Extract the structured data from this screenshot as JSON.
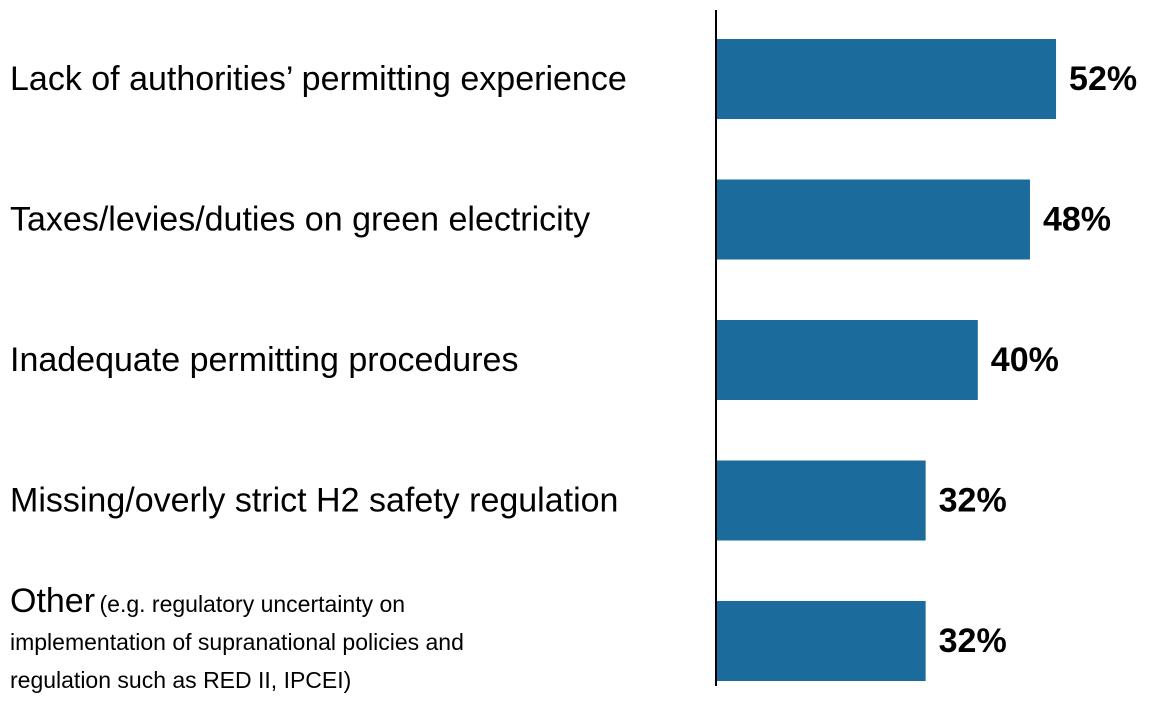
{
  "chart_data": {
    "type": "bar",
    "orientation": "horizontal",
    "categories": [
      "Lack of authorities’ permitting experience",
      "Taxes/levies/duties on green electricity",
      "Inadequate permitting procedures",
      "Missing/overly strict H2 safety regulation",
      "Other"
    ],
    "category_note": "(e.g. regulatory uncertainty on implementation of supranational policies and regulation such as RED II, IPCEI)",
    "values": [
      52,
      48,
      40,
      32,
      32
    ],
    "value_labels": [
      "52%",
      "48%",
      "40%",
      "32%",
      "32%"
    ],
    "color": "#1b6b9c"
  }
}
